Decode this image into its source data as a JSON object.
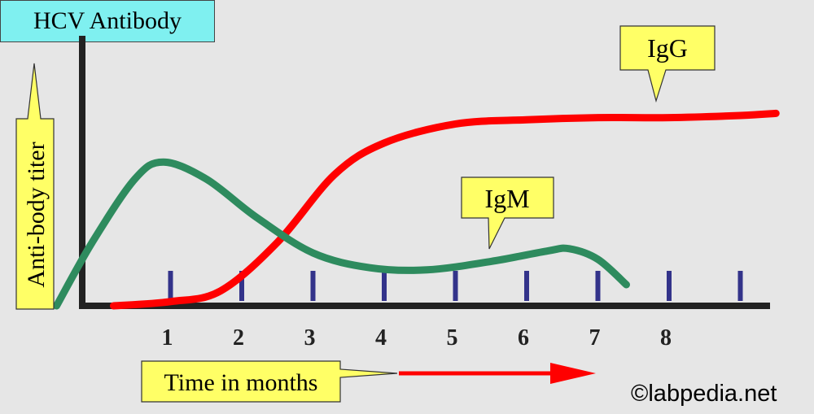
{
  "chart_data": {
    "type": "line",
    "title": "HCV Antibody",
    "xlabel": "Time in months",
    "ylabel": "Anti-body titer",
    "x_ticks": [
      "1",
      "2",
      "3",
      "4",
      "5",
      "6",
      "7",
      "8"
    ],
    "grid": false,
    "series": [
      {
        "name": "IgG",
        "color": "#ff0000",
        "points": [
          [
            0.2,
            0
          ],
          [
            1,
            0.02
          ],
          [
            1.7,
            0.07
          ],
          [
            2.5,
            0.3
          ],
          [
            3.3,
            0.62
          ],
          [
            4,
            0.77
          ],
          [
            5,
            0.86
          ],
          [
            6,
            0.88
          ],
          [
            7,
            0.89
          ],
          [
            8,
            0.89
          ],
          [
            9,
            0.9
          ],
          [
            9.5,
            0.91
          ]
        ]
      },
      {
        "name": "IgM",
        "color": "#2e8b5e",
        "points": [
          [
            -0.6,
            0
          ],
          [
            -0.1,
            0.3
          ],
          [
            0.5,
            0.6
          ],
          [
            0.9,
            0.68
          ],
          [
            1.5,
            0.6
          ],
          [
            2.2,
            0.42
          ],
          [
            3,
            0.25
          ],
          [
            3.8,
            0.18
          ],
          [
            4.6,
            0.17
          ],
          [
            5.5,
            0.21
          ],
          [
            6.3,
            0.26
          ],
          [
            6.6,
            0.27
          ],
          [
            7,
            0.22
          ],
          [
            7.4,
            0.1
          ]
        ]
      }
    ],
    "annotations": [
      "HCV Antibody",
      "IgG",
      "IgM",
      "Anti-body titer",
      "Time in months"
    ]
  },
  "watermark": "©labpedia.net",
  "colors": {
    "background": "#e6e6e6",
    "callout_yellow": "#ffff66",
    "title_box": "#7ff0f0",
    "axis": "#222222",
    "tick_marks": "#33338a",
    "arrow": "#ff0000"
  }
}
